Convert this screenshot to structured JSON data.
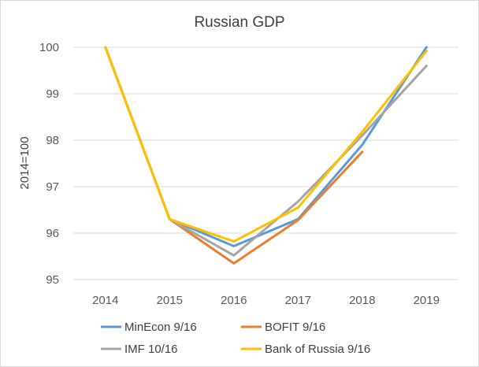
{
  "chart_data": {
    "type": "line",
    "title": "Russian GDP",
    "ylabel": "2014=100",
    "xlabel": "",
    "categories": [
      "2014",
      "2015",
      "2016",
      "2017",
      "2018",
      "2019"
    ],
    "ylim": [
      95,
      100
    ],
    "yticks": [
      95,
      96,
      97,
      98,
      99,
      100
    ],
    "grid": true,
    "legend_position": "bottom",
    "series": [
      {
        "name": "MinEcon 9/16",
        "color": "#5b9bd5",
        "values": [
          100,
          96.3,
          95.72,
          96.3,
          97.9,
          100
        ]
      },
      {
        "name": "BOFIT 9/16",
        "color": "#ed7d31",
        "values": [
          100,
          96.3,
          95.35,
          96.28,
          97.75,
          null
        ]
      },
      {
        "name": "IMF 10/16",
        "color": "#a5a5a5",
        "values": [
          100,
          96.3,
          95.52,
          96.68,
          98.1,
          99.6
        ]
      },
      {
        "name": "Bank of Russia 9/16",
        "color": "#ffc000",
        "values": [
          100,
          96.3,
          95.82,
          96.55,
          98.18,
          99.92
        ]
      }
    ]
  }
}
